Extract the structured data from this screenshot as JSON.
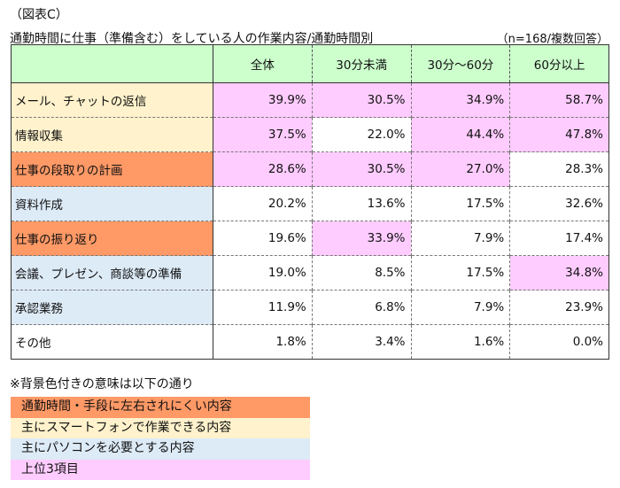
{
  "figure_label": "（図表C）",
  "title": "通勤時間に仕事（準備含む）をしている人の作業内容/通勤時間別",
  "note": "（n=168/複数回答）",
  "colors": {
    "header": "#ccffcc",
    "commute_independent": "#ff9966",
    "smartphone": "#fff2cc",
    "pc_required": "#ddebf7",
    "top3": "#ffccff",
    "default": "#ffffff"
  },
  "table": {
    "columns": [
      "",
      "全体",
      "30分未満",
      "30分～60分",
      "60分以上"
    ],
    "rows": [
      {
        "label": "メール、チャットの返信",
        "label_bg": "smartphone",
        "values": [
          "39.9%",
          "30.5%",
          "34.9%",
          "58.7%"
        ],
        "value_bg": [
          "top3",
          "top3",
          "top3",
          "top3"
        ]
      },
      {
        "label": "情報収集",
        "label_bg": "smartphone",
        "values": [
          "37.5%",
          "22.0%",
          "44.4%",
          "47.8%"
        ],
        "value_bg": [
          "top3",
          "default",
          "top3",
          "top3"
        ]
      },
      {
        "label": "仕事の段取りの計画",
        "label_bg": "commute_independent",
        "values": [
          "28.6%",
          "30.5%",
          "27.0%",
          "28.3%"
        ],
        "value_bg": [
          "top3",
          "top3",
          "top3",
          "default"
        ]
      },
      {
        "label": "資料作成",
        "label_bg": "pc_required",
        "values": [
          "20.2%",
          "13.6%",
          "17.5%",
          "32.6%"
        ],
        "value_bg": [
          "default",
          "default",
          "default",
          "default"
        ]
      },
      {
        "label": "仕事の振り返り",
        "label_bg": "commute_independent",
        "values": [
          "19.6%",
          "33.9%",
          "7.9%",
          "17.4%"
        ],
        "value_bg": [
          "default",
          "top3",
          "default",
          "default"
        ]
      },
      {
        "label": "会議、プレゼン、商談等の準備",
        "label_bg": "pc_required",
        "values": [
          "19.0%",
          "8.5%",
          "17.5%",
          "34.8%"
        ],
        "value_bg": [
          "default",
          "default",
          "default",
          "top3"
        ]
      },
      {
        "label": "承認業務",
        "label_bg": "pc_required",
        "values": [
          "11.9%",
          "6.8%",
          "7.9%",
          "23.9%"
        ],
        "value_bg": [
          "default",
          "default",
          "default",
          "default"
        ]
      },
      {
        "label": "その他",
        "label_bg": "default",
        "values": [
          "1.8%",
          "3.4%",
          "1.6%",
          "0.0%"
        ],
        "value_bg": [
          "default",
          "default",
          "default",
          "default"
        ]
      }
    ]
  },
  "legend": {
    "title": "※背景色付きの意味は以下の通り",
    "items": [
      {
        "label": "通勤時間・手段に左右されにくい内容",
        "color": "#ff9966"
      },
      {
        "label": "主にスマートフォンで作業できる内容",
        "color": "#fff2cc"
      },
      {
        "label": "主にパソコンを必要とする内容",
        "color": "#ddebf7"
      },
      {
        "label": "上位3項目",
        "color": "#ffccff"
      }
    ]
  }
}
